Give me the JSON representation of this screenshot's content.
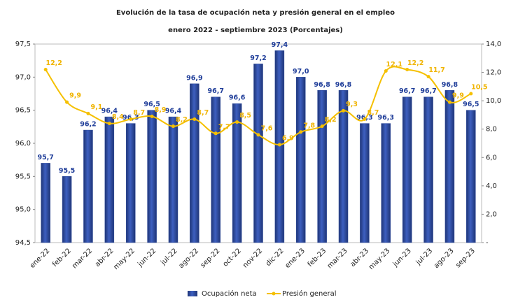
{
  "chart_data": {
    "type": "bar",
    "title": "Evolución de la tasa de ocupación neta y presión general en el empleo",
    "subtitle": "enero 2022 - septiembre 2023  (Porcentajes)",
    "categories": [
      "ene-22",
      "feb-22",
      "mar-22",
      "abr-22",
      "may-22",
      "jun-22",
      "jul-22",
      "ago-22",
      "sep-22",
      "oct-22",
      "nov-22",
      "dic-22",
      "ene-23",
      "feb-23",
      "mar-23",
      "abr-23",
      "may-23",
      "jun-23",
      "jul-23",
      "ago-23",
      "sep-23"
    ],
    "series": [
      {
        "name": "Ocupación neta",
        "type": "bar",
        "color": "#2d4a9c",
        "values": [
          95.7,
          95.5,
          96.2,
          96.4,
          96.3,
          96.5,
          96.4,
          96.9,
          96.7,
          96.6,
          97.2,
          97.4,
          97.0,
          96.8,
          96.8,
          96.3,
          96.3,
          96.7,
          96.7,
          96.8,
          96.5
        ],
        "value_labels": [
          "95,7",
          "95,5",
          "96,2",
          "96,4",
          "96,3",
          "96,5",
          "96,4",
          "96,9",
          "96,7",
          "96,6",
          "97,2",
          "97,4",
          "97,0",
          "96,8",
          "96,8",
          "96,3",
          "96,3",
          "96,7",
          "96,7",
          "96,8",
          "96,5"
        ]
      },
      {
        "name": "Presión general",
        "type": "line",
        "axis": "y2",
        "color": "#f5c000",
        "values": [
          12.2,
          9.9,
          9.1,
          8.4,
          8.7,
          8.9,
          8.2,
          8.7,
          7.7,
          8.5,
          7.6,
          6.9,
          7.8,
          8.2,
          9.3,
          8.7,
          12.1,
          12.2,
          11.7,
          9.9,
          10.5
        ],
        "value_labels": [
          "12,2",
          "9,9",
          "9,1",
          "8,4",
          "8,7",
          "8,9",
          "8,2",
          "8,7",
          "7,7",
          "8,5",
          "7,6",
          "6,9",
          "7,8",
          "8,2",
          "9,3",
          "8,7",
          "12,1",
          "12,2",
          "11,7",
          "9,9",
          "10,5"
        ]
      }
    ],
    "ylim": [
      94.5,
      97.5
    ],
    "yticks": [
      {
        "value": 94.5,
        "label": "94,5"
      },
      {
        "value": 95,
        "label": "95,0"
      },
      {
        "value": 95.5,
        "label": "95,5"
      },
      {
        "value": 96,
        "label": "96,0"
      },
      {
        "value": 96.5,
        "label": "96,5"
      },
      {
        "value": 97,
        "label": "97,0"
      },
      {
        "value": 97.5,
        "label": "97,5"
      }
    ],
    "y2lim": [
      0,
      14
    ],
    "y2ticks": [
      {
        "value": 0,
        "label": "-"
      },
      {
        "value": 2,
        "label": "2,0"
      },
      {
        "value": 4,
        "label": "4,0"
      },
      {
        "value": 6,
        "label": "6,0"
      },
      {
        "value": 8,
        "label": "8,0"
      },
      {
        "value": 10,
        "label": "10,0"
      },
      {
        "value": 12,
        "label": "12,0"
      },
      {
        "value": 14,
        "label": "14,0"
      }
    ],
    "legend": "bottom"
  }
}
